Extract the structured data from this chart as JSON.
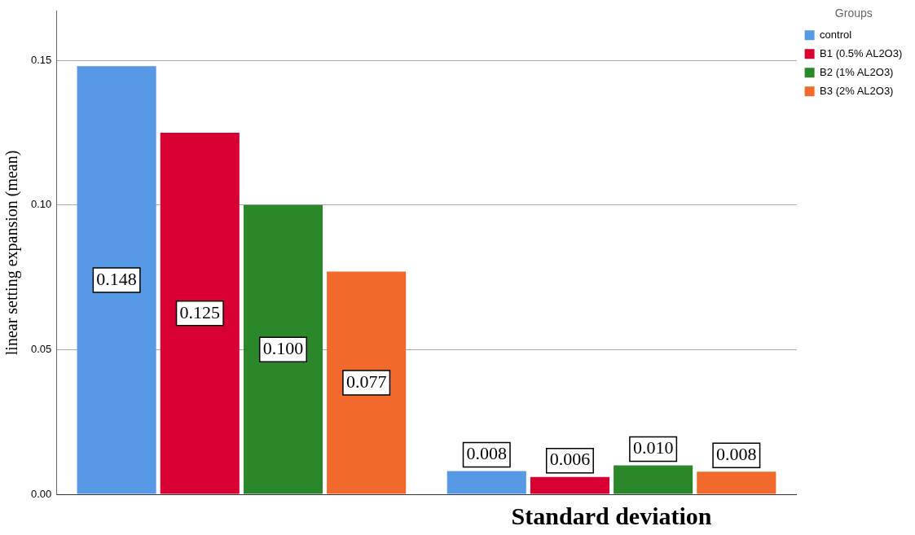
{
  "chart_data": {
    "type": "bar",
    "ylabel": "linear setting expansion (mean)",
    "legend_title": "Groups",
    "legend": "top right",
    "grid": "y",
    "categories": [
      null,
      "Standard deviation"
    ],
    "series": [
      {
        "name": "control",
        "color": "#5899e6",
        "values": [
          0.148,
          0.008
        ],
        "value_labels": [
          "0.148",
          "0.008"
        ]
      },
      {
        "name": "B1 (0.5% AL2O3)",
        "color": "#d80033",
        "values": [
          0.125,
          0.006
        ],
        "value_labels": [
          "0.125",
          "0.006"
        ]
      },
      {
        "name": "B2 (1% AL2O3)",
        "color": "#2a882a",
        "values": [
          0.1,
          0.01
        ],
        "value_labels": [
          "0.100",
          "0.010"
        ]
      },
      {
        "name": "B3 (2% AL2O3)",
        "color": "#f2692d",
        "values": [
          0.077,
          0.0078
        ],
        "value_labels": [
          "0.077",
          "0.008"
        ]
      }
    ],
    "ylim": [
      0,
      0.167
    ],
    "yticks": [
      {
        "value": 0,
        "label": "0.00"
      },
      {
        "value": 0.05,
        "label": "0.05"
      },
      {
        "value": 0.1,
        "label": "0.10"
      },
      {
        "value": 0.15,
        "label": "0.15"
      }
    ]
  }
}
